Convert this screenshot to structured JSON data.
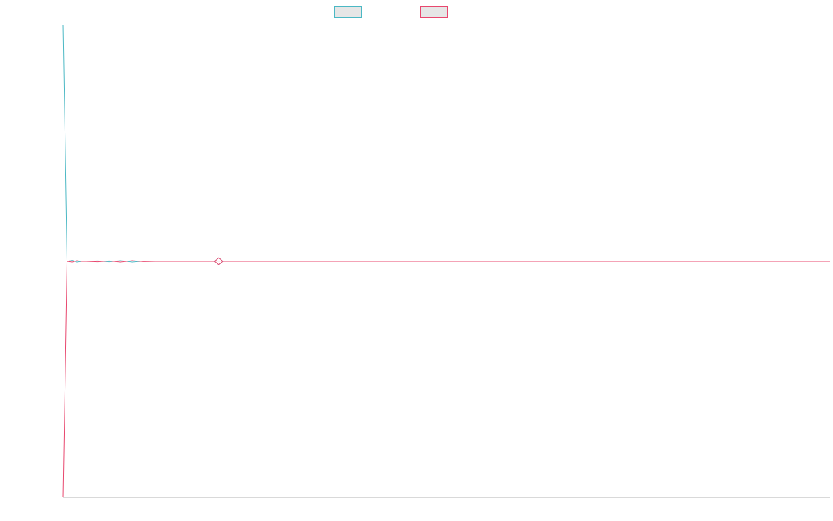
{
  "chart_data": {
    "type": "line",
    "title": "",
    "xlabel": "",
    "ylabel": "",
    "grid": false,
    "legend_position": "top-center",
    "x_range": [
      0,
      1
    ],
    "y_range": [
      -1,
      1
    ],
    "series": [
      {
        "color": "#4bb8c4",
        "x": [
          0,
          0.005,
          0.012,
          0.018,
          0.024,
          0.03,
          0.045,
          0.06,
          0.075,
          0.09,
          0.105,
          0.12,
          0.18,
          0.19,
          0.2,
          0.21,
          0.22,
          0.24,
          0.3,
          0.4,
          0.6,
          0.8,
          1.0
        ],
        "y": [
          1.0,
          0.0,
          0.004,
          -0.003,
          0.0,
          0.0,
          0.002,
          -0.002,
          0.003,
          -0.003,
          0.001,
          0.0,
          0.0,
          0.0,
          0.0,
          0.0,
          0.0,
          0.0,
          0.0,
          0.0,
          0.0,
          0.0,
          0.0
        ]
      },
      {
        "color": "#e8476e",
        "x": [
          0,
          0.005,
          0.012,
          0.018,
          0.024,
          0.03,
          0.045,
          0.06,
          0.075,
          0.09,
          0.105,
          0.12,
          0.18,
          0.19,
          0.2,
          0.21,
          0.22,
          0.24,
          0.3,
          0.4,
          0.6,
          0.8,
          1.0
        ],
        "y": [
          -1.0,
          0.0,
          -0.003,
          0.003,
          0.0,
          0.0,
          -0.002,
          0.002,
          -0.003,
          0.003,
          -0.001,
          0.0,
          0.0,
          0.0,
          0.0,
          0.0,
          0.0,
          0.0,
          0.0,
          0.0,
          0.0,
          0.0,
          0.0
        ]
      }
    ],
    "markers": [
      {
        "x": 0.203,
        "y": 0.0,
        "shape": "diamond",
        "color": "#4bb8c4"
      },
      {
        "x": 0.203,
        "y": 0.0,
        "shape": "diamond",
        "color": "#e8476e"
      }
    ],
    "legend_swatches": [
      {
        "color": "#4bb8c4",
        "fill": "#e6e6e6"
      },
      {
        "color": "#e8476e",
        "fill": "#e6e6e6"
      }
    ],
    "axis_color": "#d9d9d9"
  }
}
